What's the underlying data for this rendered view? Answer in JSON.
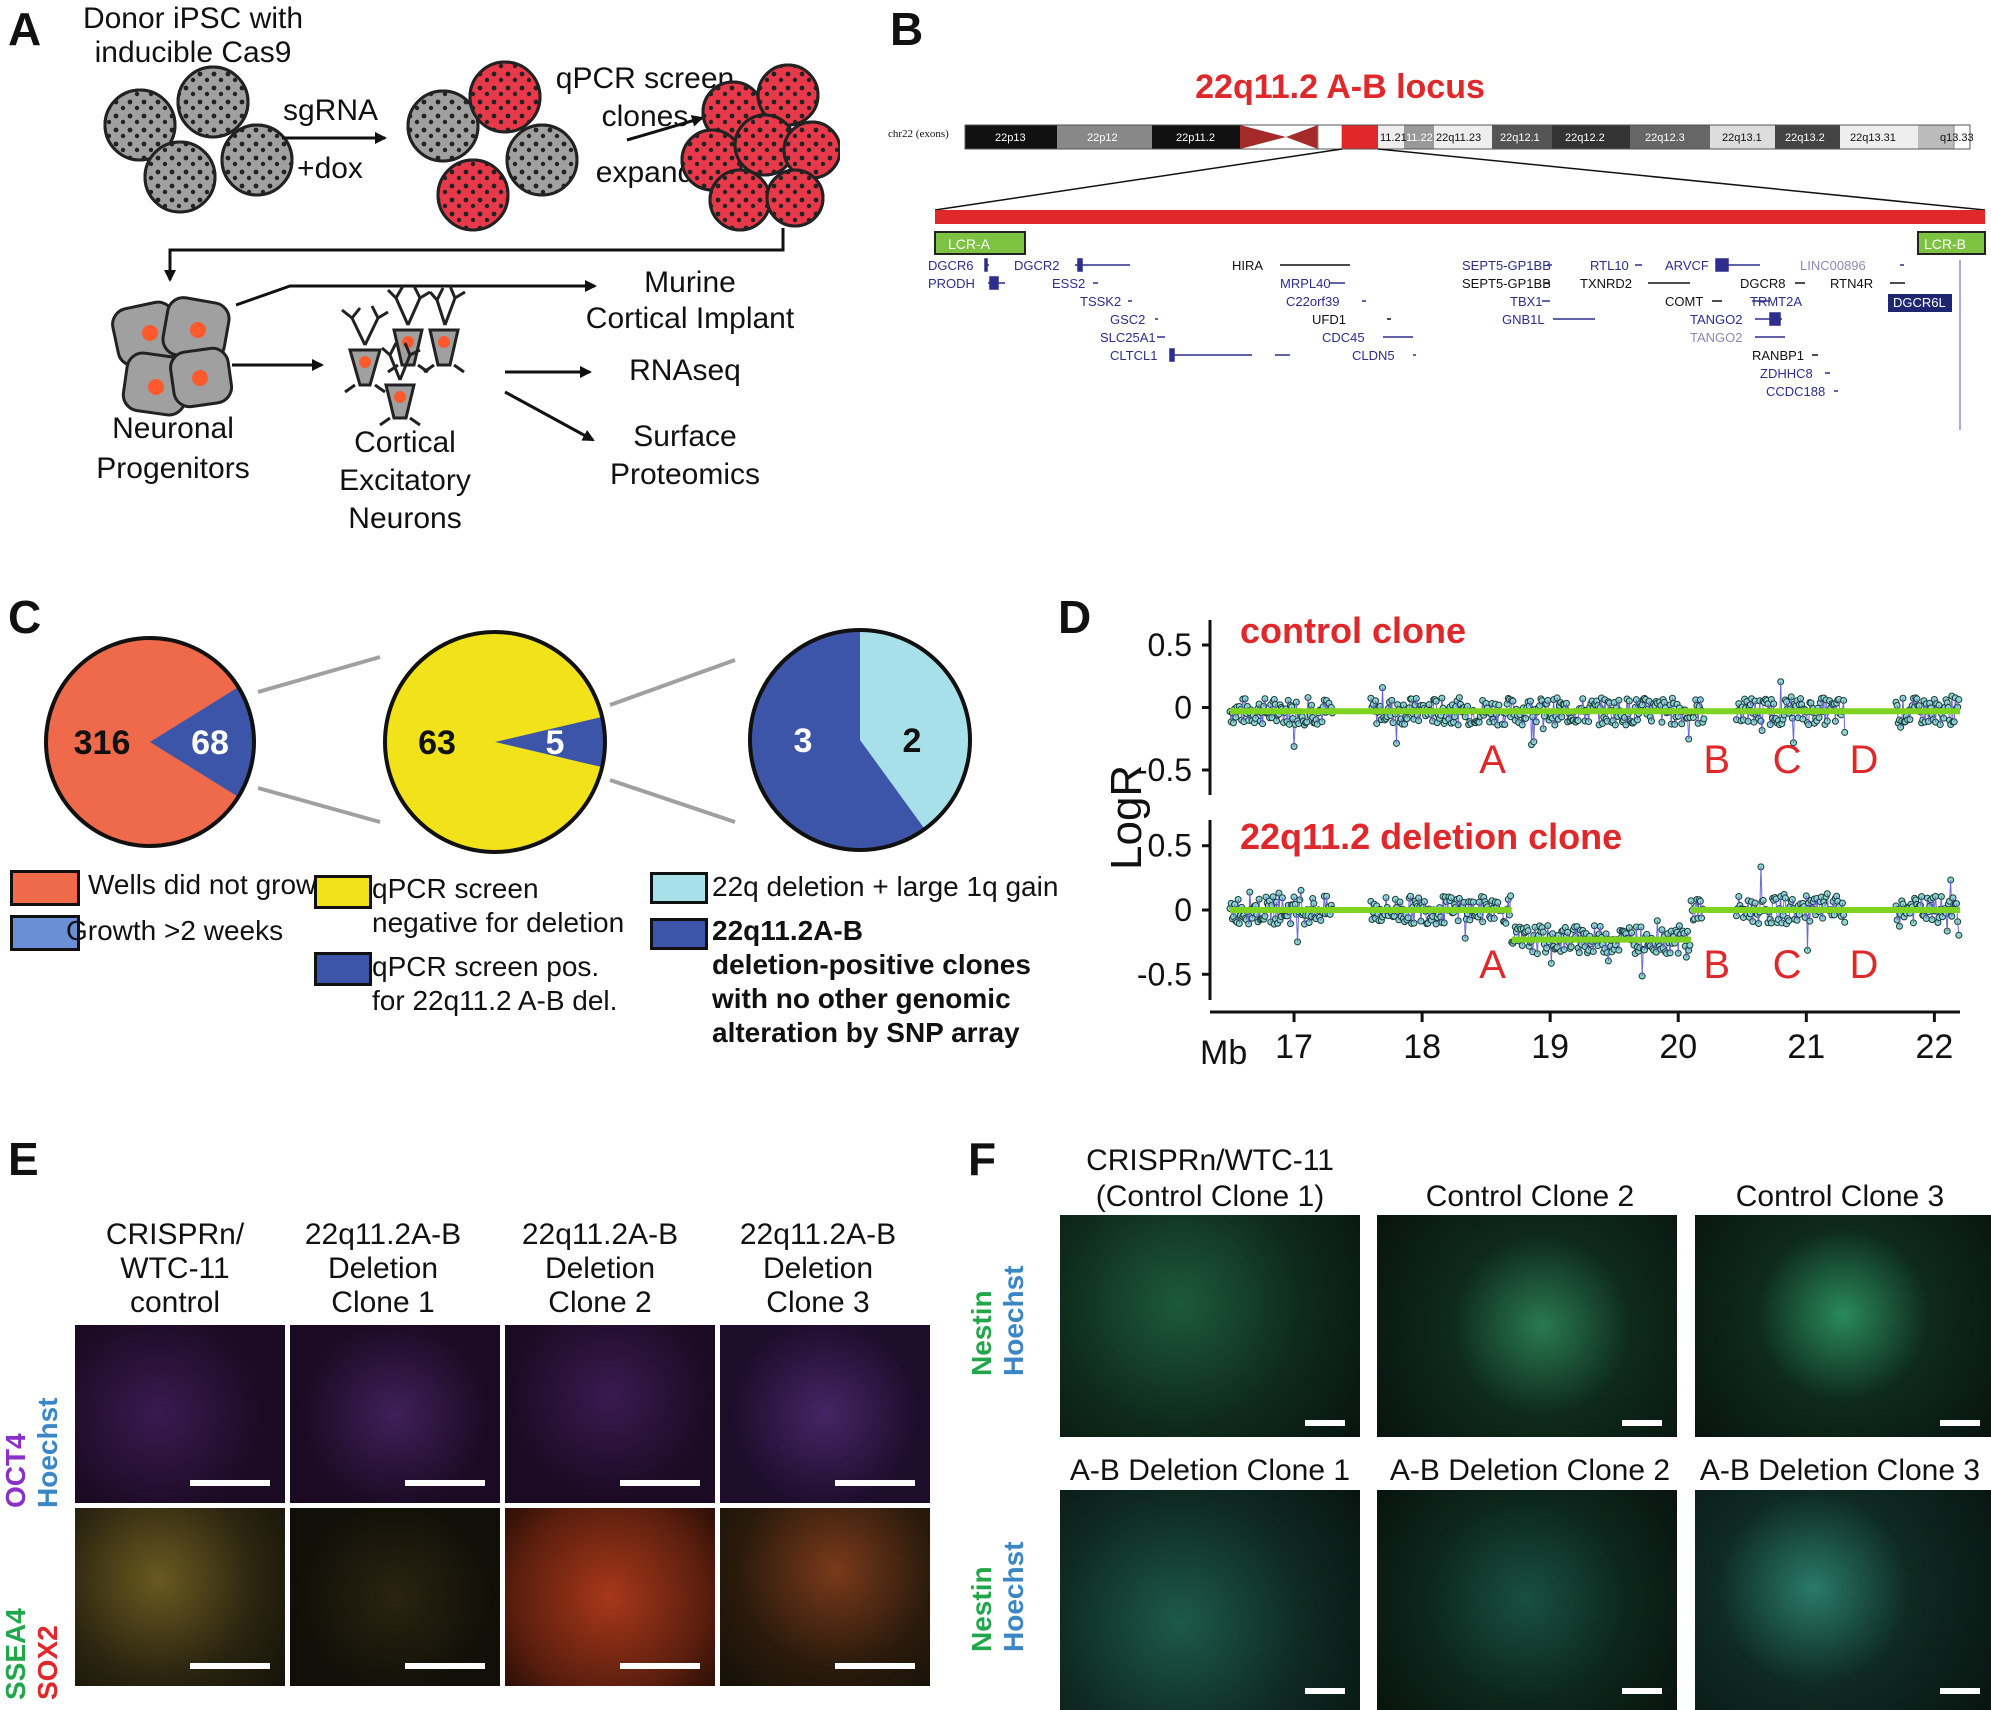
{
  "panels": {
    "a": {
      "label": "A",
      "donor": [
        "Donor iPSC with",
        "inducible Cas9"
      ],
      "sgrna": "sgRNA",
      "dox": "+dox",
      "qpcr": [
        "qPCR screen",
        "clones",
        "expand"
      ],
      "murine": [
        "Murine",
        "Cortical Implant"
      ],
      "rnaseq": "RNAseq",
      "surface": [
        "Surface",
        "Proteomics"
      ],
      "progenitors": [
        "Neuronal",
        "Progenitors"
      ],
      "neurons": [
        "Cortical",
        "Excitatory",
        "Neurons"
      ]
    },
    "b": {
      "label": "B",
      "title": "22q11.2 A-B locus",
      "chrom_label": "chr22 (exons)",
      "bands": [
        "22p13",
        "22p12",
        "22p11.2",
        "11.21",
        "11.22",
        "22q11.23",
        "22q12.1",
        "22q12.2",
        "22q12.3",
        "22q13.1",
        "22q13.2",
        "22q13.31",
        "q13.33"
      ],
      "lcr_a": "LCR-A",
      "lcr_b": "LCR-B",
      "genes": [
        "DGCR6",
        "PRODH",
        "DGCR2",
        "ESS2",
        "TSSK2",
        "GSC2",
        "SLC25A1",
        "CLTCL1",
        "HIRA",
        "MRPL40",
        "C22orf39",
        "UFD1",
        "CDC45",
        "CLDN5",
        "SEPT5-GP1BB",
        "SEPT5-GP1BB",
        "TBX1",
        "GNB1L",
        "RTL10",
        "TXNRD2",
        "ARVCF",
        "COMT",
        "DGCR8",
        "TANGO2",
        "TANGO2",
        "TRMT2A",
        "RANBP1",
        "ZDHHC8",
        "CCDC188",
        "LINC00896",
        "RTN4R",
        "DGCR6L"
      ]
    },
    "c": {
      "label": "C",
      "pie1": {
        "values": [
          316,
          68
        ]
      },
      "pie2": {
        "values": [
          63,
          5
        ]
      },
      "pie3": {
        "values": [
          3,
          2
        ]
      },
      "legend": {
        "wells": "Wells did not grow",
        "growth": "Growth >2 weeks",
        "neg": [
          "qPCR screen",
          "negative for deletion"
        ],
        "pos": [
          "qPCR screen pos.",
          "for 22q11.2 A-B del."
        ],
        "gain": "22q deletion + large 1q gain",
        "clean": [
          "22q11.2A-B",
          "deletion-positive clones",
          "with no other genomic",
          "alteration by SNP array"
        ]
      },
      "colors": {
        "orange": "#ee6a4a",
        "blue": "#3d55a8",
        "yellow": "#f1e219",
        "lightblue": "#a8e0ea",
        "legend_blue": "#6b8fd4"
      }
    },
    "d": {
      "label": "D",
      "ylabel": "LogR",
      "xunit": "Mb",
      "xticks": [
        "17",
        "18",
        "19",
        "20",
        "21",
        "22"
      ],
      "yticks": [
        "0.5",
        "0",
        "-0.5"
      ],
      "top_title": "control clone",
      "bottom_title": "22q11.2 deletion clone",
      "regions": [
        "A",
        "B",
        "C",
        "D"
      ]
    },
    "e": {
      "label": "E",
      "cols": [
        [
          "CRISPRn/",
          "WTC-11",
          "control"
        ],
        [
          "22q11.2A-B",
          "Deletion",
          "Clone 1"
        ],
        [
          "22q11.2A-B",
          "Deletion",
          "Clone 2"
        ],
        [
          "22q11.2A-B",
          "Deletion",
          "Clone 3"
        ]
      ],
      "row1": [
        "OCT4",
        "Hoechst"
      ],
      "row2": [
        "SSEA4",
        "SOX2"
      ]
    },
    "f": {
      "label": "F",
      "top": [
        [
          "CRISPRn/WTC-11",
          "(Control Clone 1)"
        ],
        [
          "Control Clone 2"
        ],
        [
          "Control Clone 3"
        ]
      ],
      "bottom": [
        "A-B Deletion Clone 1",
        "A-B Deletion Clone 2",
        "A-B Deletion Clone 3"
      ],
      "stain": [
        "Nestin",
        "Hoechst"
      ]
    }
  },
  "chart_data": [
    {
      "type": "pie",
      "values": [
        316,
        68
      ]
    },
    {
      "type": "pie",
      "values": [
        63,
        5
      ]
    },
    {
      "type": "pie",
      "values": [
        3,
        2
      ]
    },
    {
      "type": "scatter",
      "xlabel": "Mb",
      "ylabel": "LogR",
      "xlim": [
        16.5,
        22.2
      ],
      "ylim": [
        -0.7,
        0.7
      ],
      "series": [
        {
          "name": "control clone",
          "segments": [
            {
              "x": [
                16.5,
                22.2
              ],
              "y": [
                -0.03,
                -0.03
              ]
            }
          ]
        },
        {
          "name": "22q11.2 deletion clone",
          "segments": [
            {
              "x": [
                16.5,
                18.7
              ],
              "y": [
                0,
                0
              ]
            },
            {
              "x": [
                18.7,
                20.1
              ],
              "y": [
                -0.23,
                -0.23
              ]
            },
            {
              "x": [
                20.1,
                22.2
              ],
              "y": [
                0,
                0
              ]
            }
          ]
        }
      ]
    }
  ]
}
